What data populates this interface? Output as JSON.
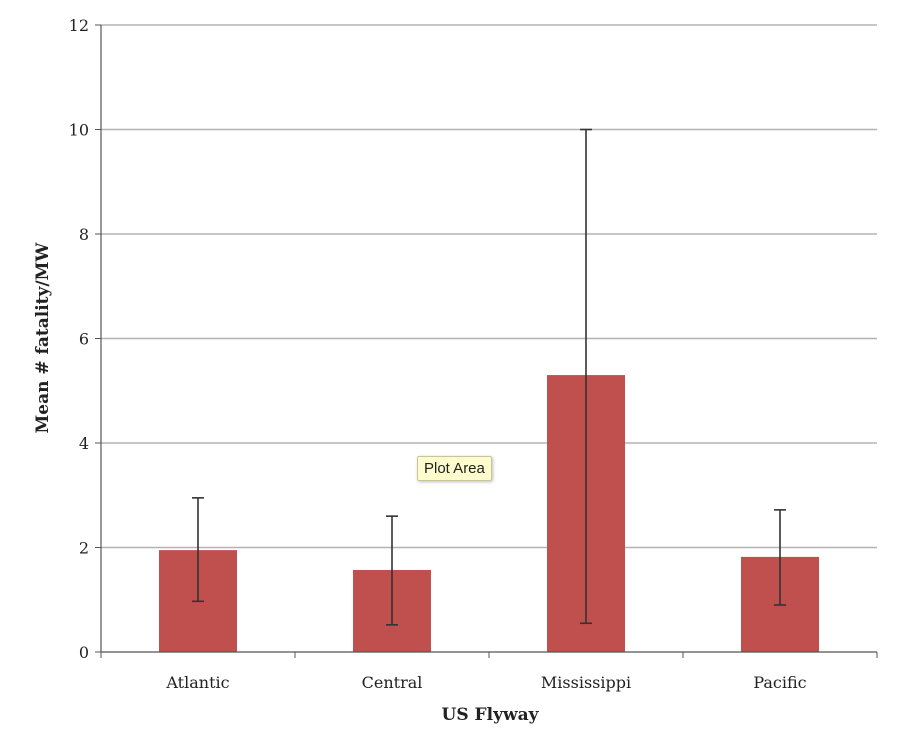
{
  "chart_data": {
    "type": "bar",
    "categories": [
      "Atlantic",
      "Central",
      "Mississippi",
      "Pacific"
    ],
    "values": [
      1.95,
      1.57,
      5.3,
      1.82
    ],
    "error_low": [
      0.97,
      0.52,
      0.55,
      0.9
    ],
    "error_high": [
      2.95,
      2.6,
      10.0,
      2.72
    ],
    "xlabel": "US Flyway",
    "ylabel": "Mean # fatality/MW",
    "ylim": [
      0,
      12
    ],
    "yticks": [
      0,
      2,
      4,
      6,
      8,
      10,
      12
    ],
    "grid": true,
    "legend": "none",
    "bar_color": "#c0504d",
    "errorbar_color": "#333333"
  },
  "tooltip": {
    "label": "Plot Area"
  }
}
